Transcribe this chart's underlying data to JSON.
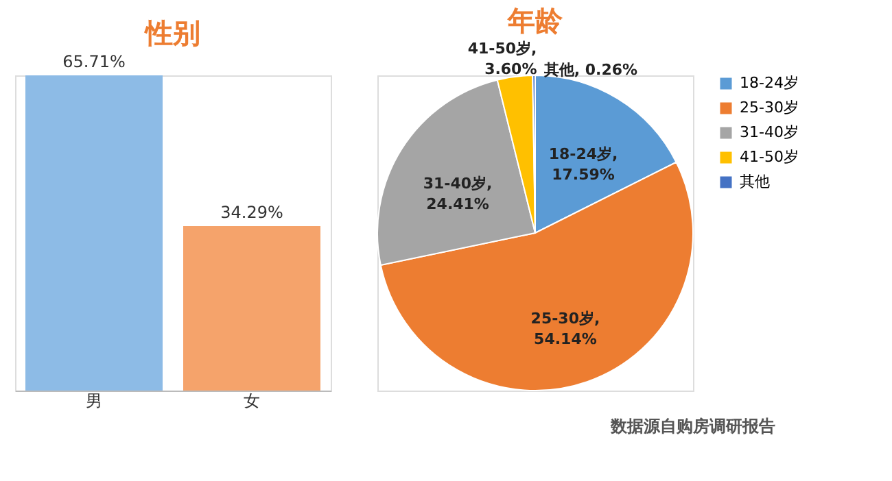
{
  "chart_data": [
    {
      "type": "bar",
      "title": "性别",
      "categories": [
        "男",
        "女"
      ],
      "values": [
        65.71,
        34.29
      ],
      "colors": [
        "#8dbbe6",
        "#f5a36b"
      ],
      "value_labels": [
        "65.71%",
        "34.29%"
      ]
    },
    {
      "type": "pie",
      "title": "年龄",
      "categories": [
        "18-24岁",
        "25-30岁",
        "31-40岁",
        "41-50岁",
        "其他"
      ],
      "values": [
        17.59,
        54.14,
        24.41,
        3.6,
        0.26
      ],
      "colors": [
        "#5b9bd5",
        "#ed7d31",
        "#a5a5a5",
        "#ffc000",
        "#4472c4"
      ],
      "value_labels": [
        "18-24岁, 17.59%",
        "25-30岁, 54.14%",
        "31-40岁, 24.41%",
        "41-50岁, 3.60%",
        "其他, 0.26%"
      ],
      "legend": "right",
      "annotations": [
        "数据源自购房调研报告"
      ]
    }
  ]
}
